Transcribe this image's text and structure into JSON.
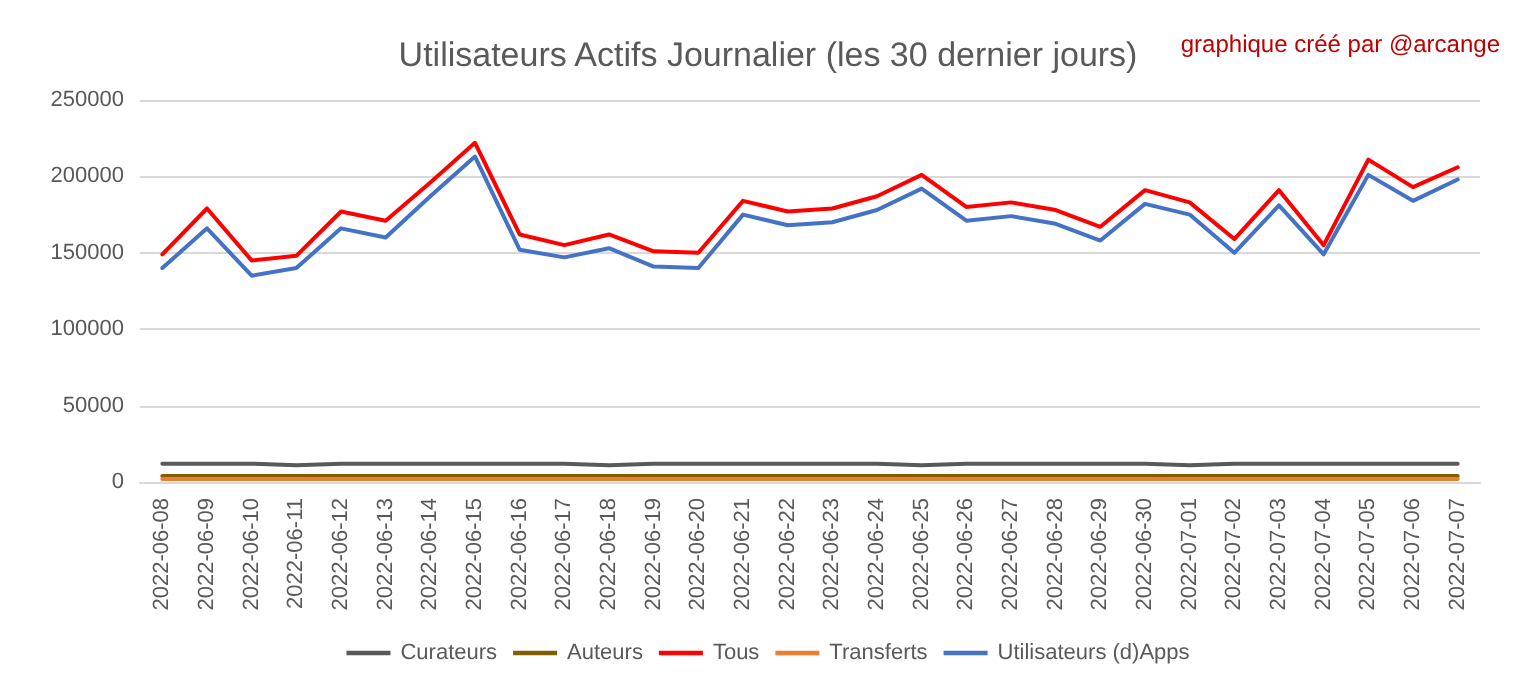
{
  "chart_data": {
    "type": "line",
    "title": "Utilisateurs Actifs Journalier (les 30 dernier jours)",
    "annotations": [
      "graphique créé par @arcange"
    ],
    "categories": [
      "2022-06-08",
      "2022-06-09",
      "2022-06-10",
      "2022-06-11",
      "2022-06-12",
      "2022-06-13",
      "2022-06-14",
      "2022-06-15",
      "2022-06-16",
      "2022-06-17",
      "2022-06-18",
      "2022-06-19",
      "2022-06-20",
      "2022-06-21",
      "2022-06-22",
      "2022-06-23",
      "2022-06-24",
      "2022-06-25",
      "2022-06-26",
      "2022-06-27",
      "2022-06-28",
      "2022-06-29",
      "2022-06-30",
      "2022-07-01",
      "2022-07-02",
      "2022-07-03",
      "2022-07-04",
      "2022-07-05",
      "2022-07-06",
      "2022-07-07"
    ],
    "series": [
      {
        "name": "Curateurs",
        "color": "#595959",
        "values": [
          12000,
          12000,
          12000,
          11000,
          12000,
          12000,
          12000,
          12000,
          12000,
          12000,
          11000,
          12000,
          12000,
          12000,
          12000,
          12000,
          12000,
          11000,
          12000,
          12000,
          12000,
          12000,
          12000,
          11000,
          12000,
          12000,
          12000,
          12000,
          12000,
          12000
        ]
      },
      {
        "name": "Auteurs",
        "color": "#7f5f00",
        "values": [
          4000,
          4000,
          4000,
          4000,
          4000,
          4000,
          4000,
          4000,
          4000,
          4000,
          4000,
          4000,
          4000,
          4000,
          4000,
          4000,
          4000,
          4000,
          4000,
          4000,
          4000,
          4000,
          4000,
          4000,
          4000,
          4000,
          4000,
          4000,
          4000,
          4000
        ]
      },
      {
        "name": "Tous",
        "color": "#ff0000",
        "values": [
          149000,
          179000,
          145000,
          148000,
          177000,
          171000,
          196000,
          222000,
          162000,
          155000,
          162000,
          151000,
          150000,
          184000,
          177000,
          179000,
          187000,
          201000,
          180000,
          183000,
          178000,
          167000,
          191000,
          183000,
          159000,
          191000,
          155000,
          211000,
          193000,
          206000
        ]
      },
      {
        "name": "Transferts",
        "color": "#ed7d31",
        "values": [
          2000,
          2000,
          2000,
          2000,
          2000,
          2000,
          2000,
          2000,
          2000,
          2000,
          2000,
          2000,
          2000,
          2000,
          2000,
          2000,
          2000,
          2000,
          2000,
          2000,
          2000,
          2000,
          2000,
          2000,
          2000,
          2000,
          2000,
          2000,
          2000,
          2000
        ]
      },
      {
        "name": "Utilisateurs (d)Apps",
        "color": "#4472c4",
        "values": [
          140000,
          166000,
          135000,
          140000,
          166000,
          160000,
          187000,
          213000,
          152000,
          147000,
          153000,
          141000,
          140000,
          175000,
          168000,
          170000,
          178000,
          192000,
          171000,
          174000,
          169000,
          158000,
          182000,
          175000,
          150000,
          181000,
          149000,
          201000,
          184000,
          198000
        ]
      }
    ],
    "ylim": [
      0,
      250000
    ],
    "yticks": [
      0,
      50000,
      100000,
      150000,
      200000,
      250000
    ],
    "grid": "y",
    "legend": "bottom",
    "marker": "none",
    "line_style": "solid"
  }
}
